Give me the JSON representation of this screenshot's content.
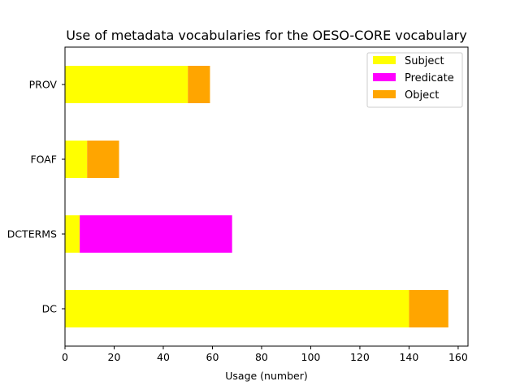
{
  "chart_data": {
    "type": "bar",
    "orientation": "horizontal",
    "stacked": true,
    "title": "Use of metadata vocabularies for the OESO-CORE vocabulary",
    "xlabel": "Usage (number)",
    "ylabel": "",
    "categories": [
      "DC",
      "DCTERMS",
      "FOAF",
      "PROV"
    ],
    "series": [
      {
        "name": "Subject",
        "color": "#ffff00",
        "values": [
          140,
          6,
          9,
          50
        ]
      },
      {
        "name": "Predicate",
        "color": "#ff00ff",
        "values": [
          0,
          62,
          0,
          0
        ]
      },
      {
        "name": "Object",
        "color": "#ffa500",
        "values": [
          16,
          0,
          13,
          9
        ]
      }
    ],
    "xlim": [
      0,
      164
    ],
    "xticks": [
      0,
      20,
      40,
      60,
      80,
      100,
      120,
      140,
      160
    ],
    "grid": false,
    "legend": "top-right"
  }
}
